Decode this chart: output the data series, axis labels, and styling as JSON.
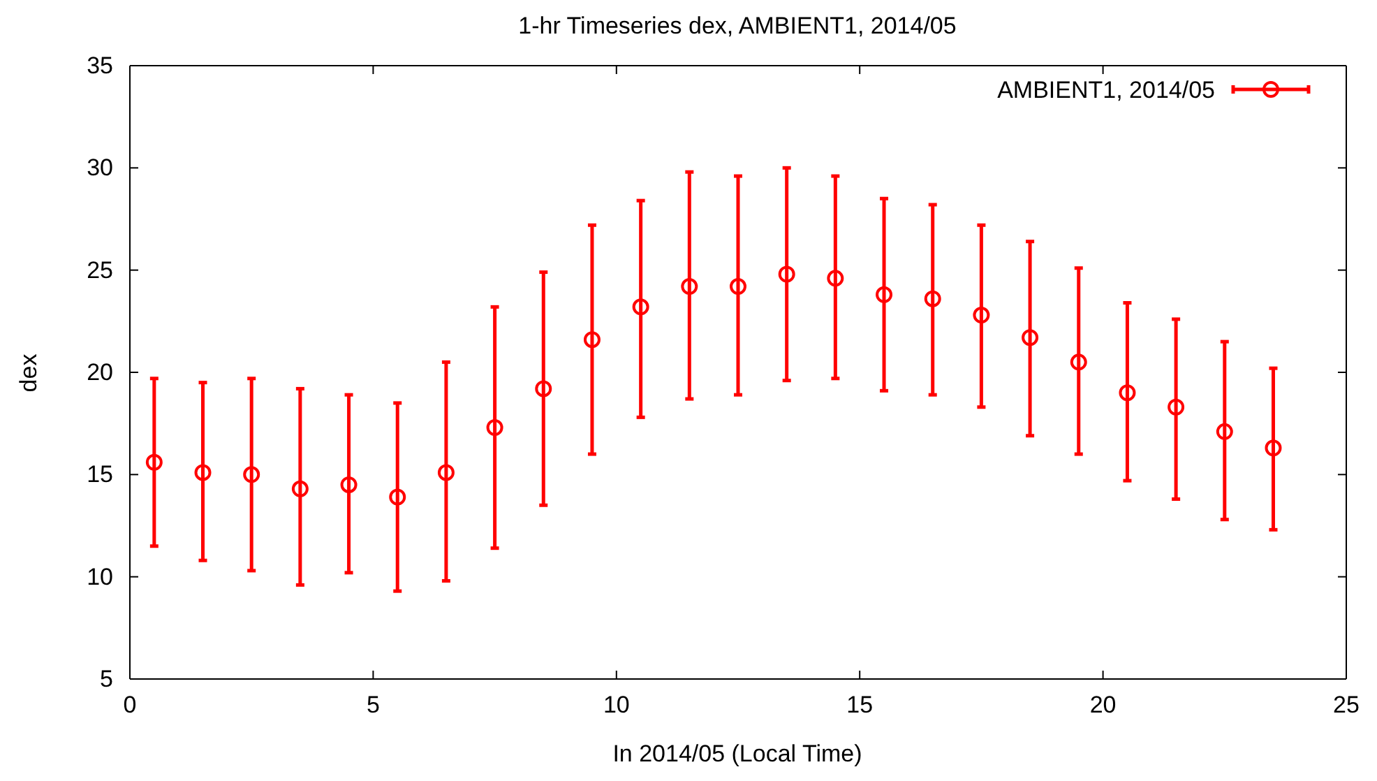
{
  "chart_data": {
    "type": "scatter",
    "title": "1-hr Timeseries dex, AMBIENT1, 2014/05",
    "xlabel": "In 2014/05 (Local Time)",
    "ylabel": "dex",
    "x": [
      0.5,
      1.5,
      2.5,
      3.5,
      4.5,
      5.5,
      6.5,
      7.5,
      8.5,
      9.5,
      10.5,
      11.5,
      12.5,
      13.5,
      14.5,
      15.5,
      16.5,
      17.5,
      18.5,
      19.5,
      20.5,
      21.5,
      22.5,
      23.5
    ],
    "series": [
      {
        "name": "AMBIENT1, 2014/05",
        "color": "#ff0000",
        "values": [
          15.6,
          15.1,
          15.0,
          14.3,
          14.5,
          13.9,
          15.1,
          17.3,
          19.2,
          21.6,
          23.2,
          24.2,
          24.2,
          24.8,
          24.6,
          23.8,
          23.6,
          22.8,
          21.7,
          20.5,
          19.0,
          18.3,
          17.1,
          16.3
        ],
        "errors": [
          [
            11.5,
            19.7
          ],
          [
            10.8,
            19.5
          ],
          [
            10.3,
            19.7
          ],
          [
            9.6,
            19.2
          ],
          [
            10.2,
            18.9
          ],
          [
            9.3,
            18.5
          ],
          [
            9.8,
            20.5
          ],
          [
            11.4,
            23.2
          ],
          [
            13.5,
            24.9
          ],
          [
            16.0,
            27.2
          ],
          [
            17.8,
            28.4
          ],
          [
            18.7,
            29.8
          ],
          [
            18.9,
            29.6
          ],
          [
            19.6,
            30.0
          ],
          [
            19.7,
            29.6
          ],
          [
            19.1,
            28.5
          ],
          [
            18.9,
            28.2
          ],
          [
            18.3,
            27.2
          ],
          [
            16.9,
            26.4
          ],
          [
            16.0,
            25.1
          ],
          [
            14.7,
            23.4
          ],
          [
            13.8,
            22.6
          ],
          [
            12.8,
            21.5
          ],
          [
            12.3,
            20.2
          ]
        ]
      }
    ],
    "xlim": [
      0,
      25
    ],
    "xticks": [
      0,
      5,
      10,
      15,
      20,
      25
    ],
    "ylim": [
      5,
      35
    ],
    "yticks": [
      5,
      10,
      15,
      20,
      25,
      30,
      35
    ],
    "grid": false,
    "legend": "top right",
    "marker": "circle"
  }
}
